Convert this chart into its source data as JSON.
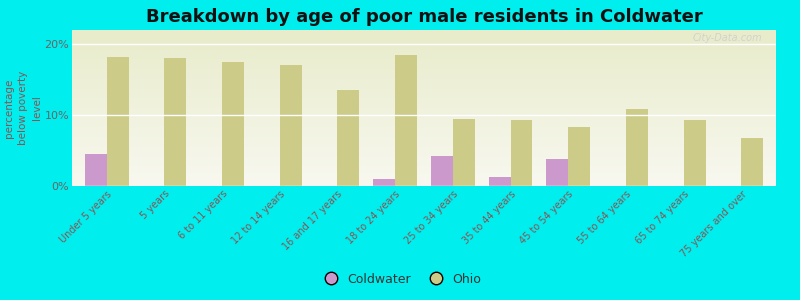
{
  "title": "Breakdown by age of poor male residents in Coldwater",
  "ylabel": "percentage\nbelow poverty\nlevel",
  "background_color": "#00EEEE",
  "plot_bg_color_top": "#f8f8f0",
  "plot_bg_color_bottom": "#e8ecca",
  "categories": [
    "Under 5 years",
    "5 years",
    "6 to 11 years",
    "12 to 14 years",
    "16 and 17 years",
    "18 to 24 years",
    "25 to 34 years",
    "35 to 44 years",
    "45 to 54 years",
    "55 to 64 years",
    "65 to 74 years",
    "75 years and over"
  ],
  "coldwater_values": [
    4.5,
    0,
    0,
    0,
    0,
    1.0,
    4.2,
    1.2,
    3.8,
    0,
    0,
    0
  ],
  "ohio_values": [
    18.2,
    18.0,
    17.5,
    17.0,
    13.5,
    18.5,
    9.5,
    9.3,
    8.3,
    10.8,
    9.3,
    6.8
  ],
  "coldwater_color": "#cc99cc",
  "ohio_color": "#cccc88",
  "bar_width": 0.38,
  "ylim": [
    0,
    22
  ],
  "yticks": [
    0,
    10,
    20
  ],
  "ytick_labels": [
    "0%",
    "10%",
    "20%"
  ],
  "title_fontsize": 13,
  "tick_label_fontsize": 7,
  "ylabel_fontsize": 7.5,
  "legend_fontsize": 9,
  "watermark": "City-Data.com"
}
